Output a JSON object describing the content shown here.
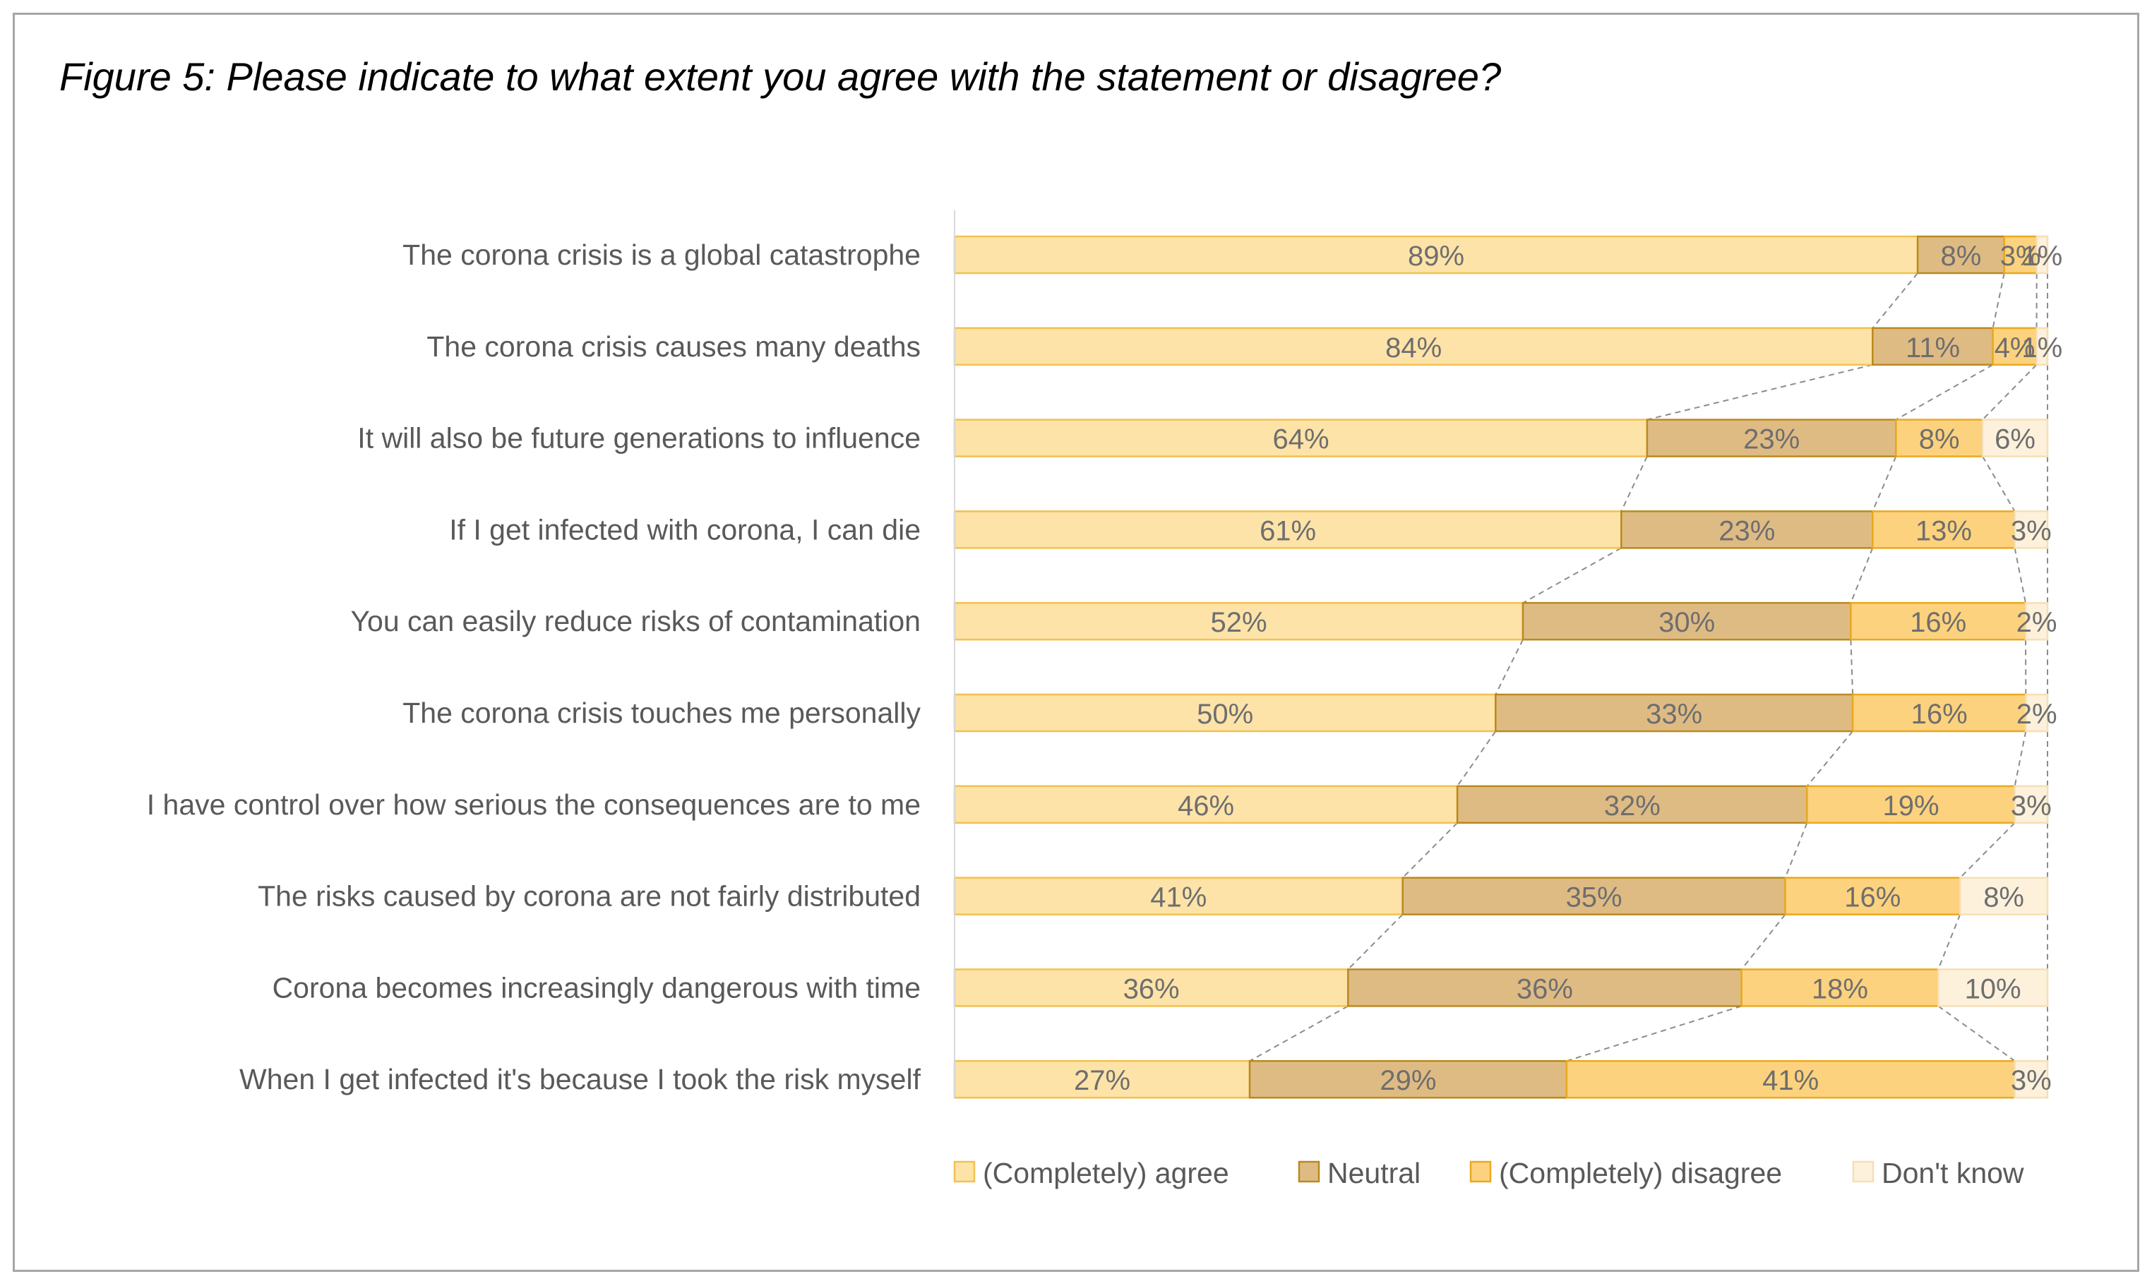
{
  "title": "Figure 5: Please indicate to what extent you agree with the statement or disagree?",
  "colors": {
    "agree_fill": "#fde3a8",
    "agree_stroke": "#f2c14e",
    "neutral_fill": "#dfbb84",
    "neutral_stroke": "#b98a1c",
    "disagree_fill": "#fdd27e",
    "disagree_stroke": "#e9a920",
    "dontknow_fill": "#fdf1dc",
    "dontknow_stroke": "#f5dfb5",
    "connector": "#8c8c8c",
    "axis": "#d9d9d9"
  },
  "chart_data": {
    "type": "bar",
    "orientation": "horizontal",
    "stacked": "100%",
    "categories": [
      "The corona crisis is a global catastrophe",
      "The corona crisis causes many deaths",
      "It will also be future generations to influence",
      "If I get infected with corona, I can die",
      "You can easily reduce risks of contamination",
      "The corona crisis touches me personally",
      "I have control over how serious the consequences are to me",
      "The risks caused by corona are not fairly distributed",
      "Corona becomes increasingly dangerous with time",
      "When I get infected it's because I took the risk myself"
    ],
    "series": [
      {
        "name": "(Completely) agree",
        "values": [
          89,
          84,
          64,
          61,
          52,
          50,
          46,
          41,
          36,
          27
        ]
      },
      {
        "name": "Neutral",
        "values": [
          8,
          11,
          23,
          23,
          30,
          33,
          32,
          35,
          36,
          29
        ]
      },
      {
        "name": "(Completely) disagree",
        "values": [
          3,
          4,
          8,
          13,
          16,
          16,
          19,
          16,
          18,
          41
        ]
      },
      {
        "name": "Don't know",
        "values": [
          1,
          1,
          6,
          3,
          2,
          2,
          3,
          8,
          10,
          3
        ]
      }
    ],
    "value_suffix": "%",
    "legend_position": "bottom",
    "series_lines": true
  }
}
